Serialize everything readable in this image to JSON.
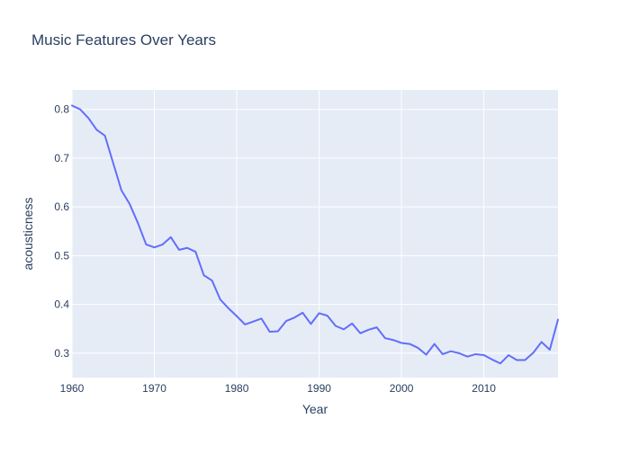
{
  "chart_data": {
    "type": "line",
    "title": "Music Features Over Years",
    "xlabel": "Year",
    "ylabel": "acousticness",
    "xlim": [
      1960,
      2019
    ],
    "ylim": [
      0.25,
      0.84
    ],
    "x_ticks": [
      1960,
      1970,
      1980,
      1990,
      2000,
      2010
    ],
    "y_ticks": [
      0.3,
      0.4,
      0.5,
      0.6,
      0.7,
      0.8
    ],
    "grid": true,
    "legend": "none",
    "colors": {
      "line": "#636efa",
      "plot_bg": "#e5ecf6",
      "grid": "#ffffff",
      "text": "#2a3f5f"
    },
    "series": [
      {
        "x": [
          1960,
          1961,
          1962,
          1963,
          1964,
          1965,
          1966,
          1967,
          1968,
          1969,
          1970,
          1971,
          1972,
          1973,
          1974,
          1975,
          1976,
          1977,
          1978,
          1979,
          1980,
          1981,
          1982,
          1983,
          1984,
          1985,
          1986,
          1987,
          1988,
          1989,
          1990,
          1991,
          1992,
          1993,
          1994,
          1995,
          1996,
          1997,
          1998,
          1999,
          2000,
          2001,
          2002,
          2003,
          2004,
          2005,
          2006,
          2007,
          2008,
          2009,
          2010,
          2011,
          2012,
          2013,
          2014,
          2015,
          2016,
          2017,
          2018,
          2019
        ],
        "y": [
          0.808,
          0.8,
          0.782,
          0.758,
          0.746,
          0.69,
          0.634,
          0.606,
          0.567,
          0.523,
          0.517,
          0.523,
          0.538,
          0.512,
          0.516,
          0.508,
          0.46,
          0.449,
          0.41,
          0.392,
          0.376,
          0.359,
          0.365,
          0.371,
          0.344,
          0.345,
          0.366,
          0.373,
          0.383,
          0.36,
          0.382,
          0.377,
          0.356,
          0.349,
          0.361,
          0.341,
          0.348,
          0.353,
          0.331,
          0.327,
          0.321,
          0.319,
          0.311,
          0.297,
          0.319,
          0.298,
          0.304,
          0.3,
          0.293,
          0.298,
          0.296,
          0.287,
          0.279,
          0.296,
          0.286,
          0.286,
          0.301,
          0.323,
          0.307,
          0.369
        ]
      }
    ]
  }
}
